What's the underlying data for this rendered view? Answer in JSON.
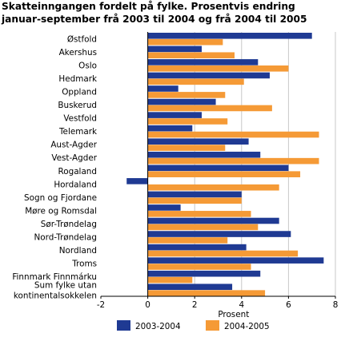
{
  "chart_data": {
    "type": "bar",
    "orientation": "horizontal",
    "title": "Skatteinngangen fordelt på fylke. Prosentvis endring januar-september frå 2003 til 2004 og frå 2004 til 2005",
    "xlabel": "Prosent",
    "ylabel": "",
    "xlim": [
      -2,
      8
    ],
    "xticks": [
      -2,
      0,
      2,
      4,
      6,
      8
    ],
    "grid": "vertical",
    "legend_position": "bottom",
    "categories": [
      "Østfold",
      "Akershus",
      "Oslo",
      "Hedmark",
      "Oppland",
      "Buskerud",
      "Vestfold",
      "Telemark",
      "Aust-Agder",
      "Vest-Agder",
      "Rogaland",
      "Hordaland",
      "Sogn og Fjordane",
      "Møre og Romsdal",
      "Sør-Trøndelag",
      "Nord-Trøndelag",
      "Nordland",
      "Troms",
      "Finnmark Finnmárku",
      [
        "Sum fylke utan",
        "kontinentalsokkelen"
      ]
    ],
    "series": [
      {
        "name": "2003-2004",
        "color": "#1f3a93",
        "values": [
          7.0,
          2.3,
          4.7,
          5.2,
          1.3,
          2.9,
          2.3,
          1.9,
          4.3,
          4.8,
          6.0,
          -0.9,
          4.0,
          1.4,
          5.6,
          6.1,
          4.2,
          7.5,
          4.8,
          3.6
        ]
      },
      {
        "name": "2004-2005",
        "color": "#f59a36",
        "values": [
          3.2,
          3.7,
          6.0,
          4.1,
          3.3,
          5.3,
          3.4,
          7.3,
          3.3,
          7.3,
          6.5,
          5.6,
          4.0,
          4.4,
          4.7,
          3.4,
          6.4,
          4.4,
          1.9,
          5.0
        ]
      }
    ]
  }
}
